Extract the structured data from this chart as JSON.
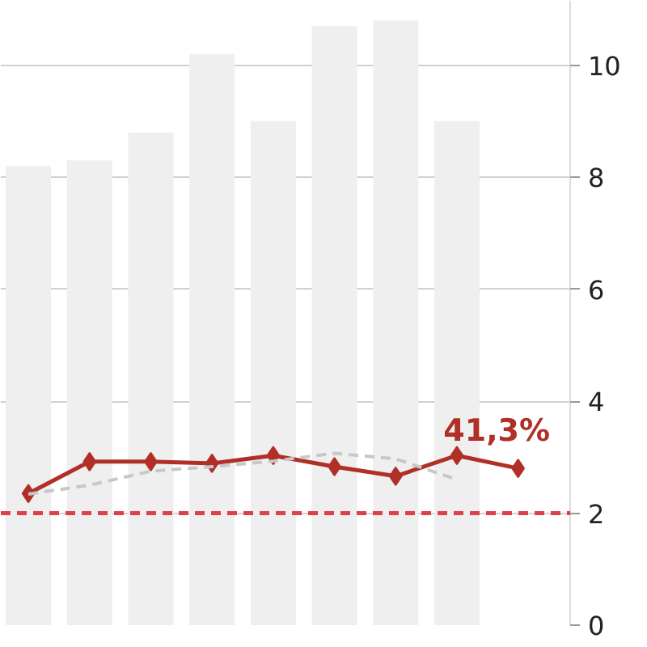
{
  "chart_data": {
    "type": "bar",
    "categories": [
      null,
      null,
      null,
      null,
      null,
      null,
      null,
      null,
      null
    ],
    "series": [
      {
        "color": "#efefef",
        "values": [
          8.2,
          8.3,
          8.8,
          10.2,
          9.0,
          10.7,
          10.8,
          9.0,
          null
        ]
      },
      {
        "type": "line",
        "color": "#b03028",
        "marker": "diamond",
        "values": [
          2.35,
          2.92,
          2.92,
          2.89,
          3.03,
          2.83,
          2.66,
          3.03,
          2.8
        ]
      },
      {
        "type": "line",
        "color": "#c8c8c8",
        "line_style": "dashed",
        "marker": "none",
        "values": [
          2.34,
          2.5,
          2.75,
          2.83,
          2.93,
          3.07,
          2.97,
          2.6,
          null
        ]
      }
    ],
    "ylim": [
      0,
      11.15
    ],
    "yticks": [
      0,
      2,
      4,
      6,
      8,
      10
    ],
    "grid": "y",
    "tick_labels": "y",
    "ref_lines": [
      {
        "axis": "y",
        "value": 2,
        "color": "#e0404a",
        "line_style": "dashed"
      }
    ],
    "annotations": [
      "41,3%"
    ]
  }
}
